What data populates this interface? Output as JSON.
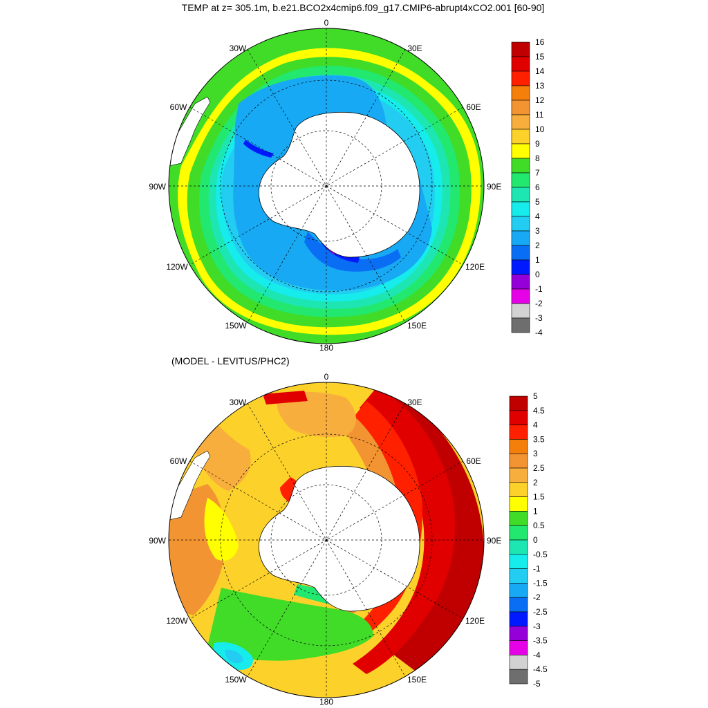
{
  "title": "TEMP at z= 305.1m, b.e21.BCO2x4cmip6.f09_g17.CMIP6-abrupt4xCO2.001 [60-90]",
  "subtitle": "(MODEL - LEVITUS/PHC2)",
  "map_data": {
    "projection": "polar-stereographic-south",
    "lat_range": [
      -90,
      -60
    ],
    "longitude_labels": [
      "0",
      "30E",
      "60E",
      "90E",
      "120E",
      "150E",
      "180",
      "150W",
      "120W",
      "90W",
      "60W",
      "30W"
    ],
    "land_color": "#ffffff",
    "panels": [
      {
        "id": "model",
        "field": "TEMP",
        "depth": "305.1m",
        "colorbar_labels": [
          "16",
          "15",
          "14",
          "13",
          "12",
          "11",
          "10",
          "9",
          "8",
          "7",
          "6",
          "5",
          "4",
          "3",
          "2",
          "1",
          "0",
          "-1",
          "-2",
          "-3",
          "-4"
        ],
        "colorbar_colors": [
          "#c00000",
          "#e00000",
          "#ff2000",
          "#f57f0b",
          "#f29432",
          "#f7ae3c",
          "#fcd12a",
          "#ffff00",
          "#40dc28",
          "#22e870",
          "#1de6b3",
          "#16ecec",
          "#22cdf1",
          "#18a9f4",
          "#0a6ef5",
          "#0019ff",
          "#9600d8",
          "#e602e6",
          "#d2d2d2",
          "#6e6e6e"
        ]
      },
      {
        "id": "difference",
        "field": "MODEL - LEVITUS/PHC2",
        "colorbar_labels": [
          "5",
          "4.5",
          "4",
          "3.5",
          "3",
          "2.5",
          "2",
          "1.5",
          "1",
          "0.5",
          "0",
          "-0.5",
          "-1",
          "-1.5",
          "-2",
          "-2.5",
          "-3",
          "-3.5",
          "-4",
          "-4.5",
          "-5"
        ],
        "colorbar_colors": [
          "#c00000",
          "#e00000",
          "#ff2000",
          "#f57f0b",
          "#f29432",
          "#f7ae3c",
          "#fcd12a",
          "#ffff00",
          "#40dc28",
          "#22e870",
          "#1de6b3",
          "#16ecec",
          "#22cdf1",
          "#18a9f4",
          "#0a6ef5",
          "#0019ff",
          "#9600d8",
          "#e602e6",
          "#d2d2d2",
          "#6e6e6e"
        ]
      }
    ]
  }
}
